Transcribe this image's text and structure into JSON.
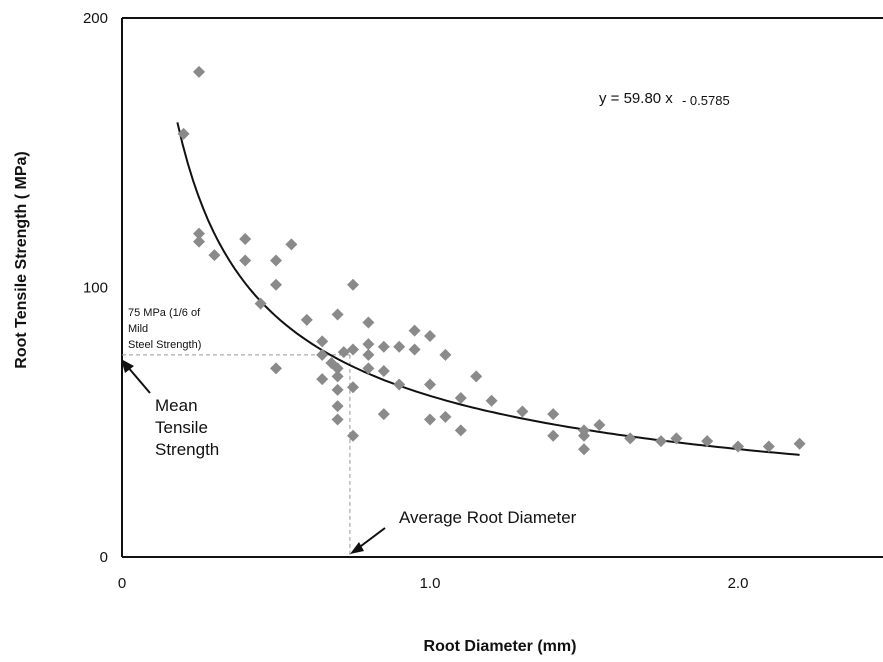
{
  "chart_data": {
    "type": "scatter",
    "xlabel": "Root Diameter (mm)",
    "ylabel": "Root Tensile Strength (   MPa)",
    "xlim": [
      0,
      2.5
    ],
    "ylim": [
      0,
      200
    ],
    "xticks": [
      "0",
      "1.0",
      "2.0"
    ],
    "xtick_values": [
      0,
      1.0,
      2.0
    ],
    "yticks": [
      "0",
      "100",
      "200"
    ],
    "ytick_values": [
      0,
      100,
      200
    ],
    "grid": false,
    "equation": {
      "main": "y = 59.80 x",
      "exponent": "- 0.5785"
    },
    "trendline": {
      "coefficient": 59.8,
      "exponent": -0.5785,
      "x_range": [
        0.18,
        2.2
      ]
    },
    "reference_lines": {
      "mean_tensile_strength": 75,
      "average_root_diameter": 0.74
    },
    "annotations": {
      "reference_line_note": [
        "75 MPa (1/6 of",
        "Mild",
        "Steel Strength)"
      ],
      "mean_label": [
        "Mean",
        "Tensile",
        "Strength"
      ],
      "diameter_label": "Average Root Diameter"
    },
    "points": [
      {
        "x": 0.2,
        "y": 157
      },
      {
        "x": 0.25,
        "y": 180
      },
      {
        "x": 0.25,
        "y": 120
      },
      {
        "x": 0.25,
        "y": 117
      },
      {
        "x": 0.3,
        "y": 112
      },
      {
        "x": 0.4,
        "y": 118
      },
      {
        "x": 0.4,
        "y": 110
      },
      {
        "x": 0.45,
        "y": 94
      },
      {
        "x": 0.5,
        "y": 110
      },
      {
        "x": 0.5,
        "y": 101
      },
      {
        "x": 0.5,
        "y": 70
      },
      {
        "x": 0.55,
        "y": 116
      },
      {
        "x": 0.6,
        "y": 88
      },
      {
        "x": 0.65,
        "y": 80
      },
      {
        "x": 0.65,
        "y": 75
      },
      {
        "x": 0.65,
        "y": 66
      },
      {
        "x": 0.68,
        "y": 72
      },
      {
        "x": 0.7,
        "y": 90
      },
      {
        "x": 0.7,
        "y": 70
      },
      {
        "x": 0.7,
        "y": 67
      },
      {
        "x": 0.7,
        "y": 62
      },
      {
        "x": 0.7,
        "y": 56
      },
      {
        "x": 0.7,
        "y": 51
      },
      {
        "x": 0.72,
        "y": 76
      },
      {
        "x": 0.75,
        "y": 101
      },
      {
        "x": 0.75,
        "y": 77
      },
      {
        "x": 0.75,
        "y": 63
      },
      {
        "x": 0.75,
        "y": 45
      },
      {
        "x": 0.8,
        "y": 87
      },
      {
        "x": 0.8,
        "y": 79
      },
      {
        "x": 0.8,
        "y": 75
      },
      {
        "x": 0.8,
        "y": 70
      },
      {
        "x": 0.85,
        "y": 78
      },
      {
        "x": 0.85,
        "y": 69
      },
      {
        "x": 0.85,
        "y": 53
      },
      {
        "x": 0.9,
        "y": 78
      },
      {
        "x": 0.9,
        "y": 64
      },
      {
        "x": 0.95,
        "y": 84
      },
      {
        "x": 0.95,
        "y": 77
      },
      {
        "x": 1.0,
        "y": 82
      },
      {
        "x": 1.0,
        "y": 64
      },
      {
        "x": 1.0,
        "y": 51
      },
      {
        "x": 1.05,
        "y": 75
      },
      {
        "x": 1.05,
        "y": 52
      },
      {
        "x": 1.1,
        "y": 59
      },
      {
        "x": 1.1,
        "y": 47
      },
      {
        "x": 1.15,
        "y": 67
      },
      {
        "x": 1.2,
        "y": 58
      },
      {
        "x": 1.3,
        "y": 54
      },
      {
        "x": 1.4,
        "y": 53
      },
      {
        "x": 1.4,
        "y": 45
      },
      {
        "x": 1.5,
        "y": 47
      },
      {
        "x": 1.5,
        "y": 45
      },
      {
        "x": 1.5,
        "y": 40
      },
      {
        "x": 1.55,
        "y": 49
      },
      {
        "x": 1.65,
        "y": 44
      },
      {
        "x": 1.75,
        "y": 43
      },
      {
        "x": 1.8,
        "y": 44
      },
      {
        "x": 1.9,
        "y": 43
      },
      {
        "x": 2.0,
        "y": 41
      },
      {
        "x": 2.1,
        "y": 41
      },
      {
        "x": 2.2,
        "y": 42
      }
    ]
  }
}
